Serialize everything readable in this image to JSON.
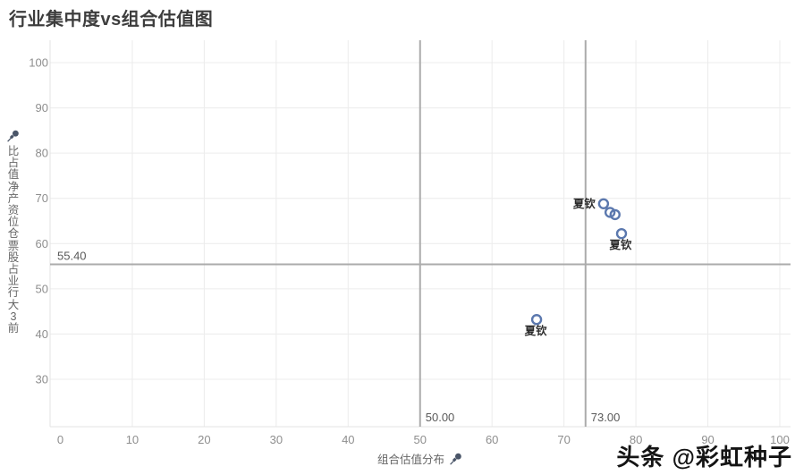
{
  "watermark": "头条 @彩虹种子",
  "chart_data": {
    "type": "scatter",
    "title": "行业集中度vs组合估值图",
    "xlabel": "组合估值分布",
    "ylabel": "前3大行业占股票仓位资产净值占比",
    "x_ticks": [
      0,
      10,
      20,
      30,
      40,
      50,
      60,
      70,
      80,
      90,
      100
    ],
    "y_ticks": [
      30,
      40,
      50,
      60,
      70,
      80,
      90,
      100
    ],
    "xlim": [
      0,
      100
    ],
    "ylim": [
      30,
      100
    ],
    "grid": true,
    "legend": "none",
    "points": [
      {
        "x": 75.5,
        "y": 68.8,
        "label": "夏钦",
        "label_pos": "left"
      },
      {
        "x": 76.4,
        "y": 66.9,
        "label": "",
        "label_pos": "none"
      },
      {
        "x": 77.1,
        "y": 66.4,
        "label": "",
        "label_pos": "none"
      },
      {
        "x": 78.0,
        "y": 62.2,
        "label": "夏钦",
        "label_pos": "below"
      },
      {
        "x": 66.2,
        "y": 43.2,
        "label": "夏钦",
        "label_pos": "below"
      }
    ],
    "reference_lines": {
      "horizontal": [
        {
          "value": 55.4,
          "label": "55.40"
        }
      ],
      "vertical": [
        {
          "value": 50.0,
          "label": "50.00"
        },
        {
          "value": 73.0,
          "label": "73.00"
        }
      ]
    },
    "colors": {
      "point_stroke": "#5b78ae",
      "reference_line": "#ababab",
      "gridline": "#ececec",
      "axis_line": "#e3e3e3",
      "tick_text": "#8e8e8e",
      "axis_title_text": "#666666",
      "data_label_text": "#2b2b2b",
      "ref_label_text": "#595959",
      "title_text": "#3d3d3d",
      "pin_icon": "#4a5568"
    }
  }
}
